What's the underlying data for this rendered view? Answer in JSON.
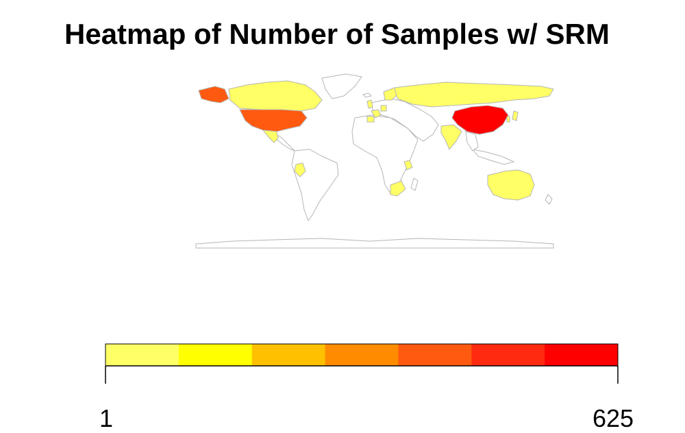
{
  "title": "Heatmap of Number of Samples w/ SRM",
  "map": {
    "border_color": "#b5b5b5",
    "default_fill": "#ffffff",
    "highlighted": [
      {
        "name": "China",
        "color": "#ff0000"
      },
      {
        "name": "United States",
        "color": "#ff5a10"
      },
      {
        "name": "Alaska",
        "color": "#ff5a10"
      },
      {
        "name": "Canada",
        "color": "#ffff66"
      },
      {
        "name": "Russia",
        "color": "#ffff66"
      },
      {
        "name": "Australia",
        "color": "#ffff66"
      },
      {
        "name": "India",
        "color": "#ffff66"
      },
      {
        "name": "Mexico",
        "color": "#ffff66"
      },
      {
        "name": "Peru",
        "color": "#ffff66"
      },
      {
        "name": "South Africa",
        "color": "#ffff66"
      },
      {
        "name": "Tanzania",
        "color": "#ffff66"
      },
      {
        "name": "Spain",
        "color": "#ffff66"
      },
      {
        "name": "France",
        "color": "#ffff66"
      },
      {
        "name": "United Kingdom",
        "color": "#ffff66"
      },
      {
        "name": "Scandinavia",
        "color": "#ffff66"
      },
      {
        "name": "Germany",
        "color": "#ffff66"
      },
      {
        "name": "Japan",
        "color": "#ffff66"
      },
      {
        "name": "South Korea",
        "color": "#ffff66"
      }
    ]
  },
  "legend": {
    "min_label": "1",
    "max_label": "625",
    "colors": [
      "#ffff66",
      "#ffff00",
      "#ffc000",
      "#ff8c00",
      "#ff5a10",
      "#ff2a10",
      "#ff0000"
    ]
  }
}
